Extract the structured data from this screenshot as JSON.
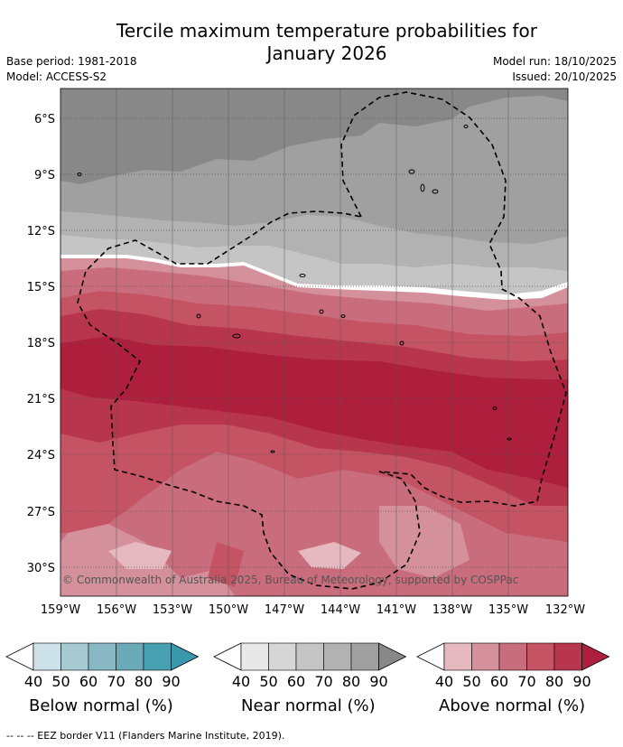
{
  "title_line1": "Tercile maximum temperature probabilities for",
  "title_line2": "January 2026",
  "base_period": "Base period: 1981-2018",
  "model": "Model: ACCESS-S2",
  "model_run": "Model run: 18/10/2025",
  "issued": "Issued: 20/10/2025",
  "copyright": "© Commonwealth of Australia 2025, Bureau of Meteorology, supported by COSPPac",
  "lat_labels": [
    "6°S",
    "9°S",
    "12°S",
    "15°S",
    "18°S",
    "21°S",
    "24°S",
    "27°S",
    "30°S"
  ],
  "lon_labels": [
    "159°W",
    "156°W",
    "153°W",
    "150°W",
    "147°W",
    "144°W",
    "141°W",
    "138°W",
    "135°W",
    "132°W"
  ],
  "colorbars": [
    {
      "title": "Below normal (%)",
      "ticks": [
        "40",
        "50",
        "60",
        "70",
        "80",
        "90"
      ],
      "colors": [
        "#cde2e8",
        "#a6c9d2",
        "#88b8c4",
        "#6aaab9",
        "#47a0b1"
      ],
      "extend_color": "#3a98ac"
    },
    {
      "title": "Near normal (%)",
      "ticks": [
        "40",
        "50",
        "60",
        "70",
        "80",
        "90"
      ],
      "colors": [
        "#e8e8e8",
        "#d6d6d6",
        "#c5c5c5",
        "#b2b2b2",
        "#a0a0a0"
      ],
      "extend_color": "#888888"
    },
    {
      "title": "Above normal (%)",
      "ticks": [
        "40",
        "50",
        "60",
        "70",
        "80",
        "90"
      ],
      "colors": [
        "#e6b9c0",
        "#d4919b",
        "#c96c7c",
        "#c45464",
        "#b8364d"
      ],
      "extend_color": "#ae1f3d"
    }
  ],
  "footnote": "-- -- -- EEZ border V11 (Flanders Marine Institute, 2019)."
}
